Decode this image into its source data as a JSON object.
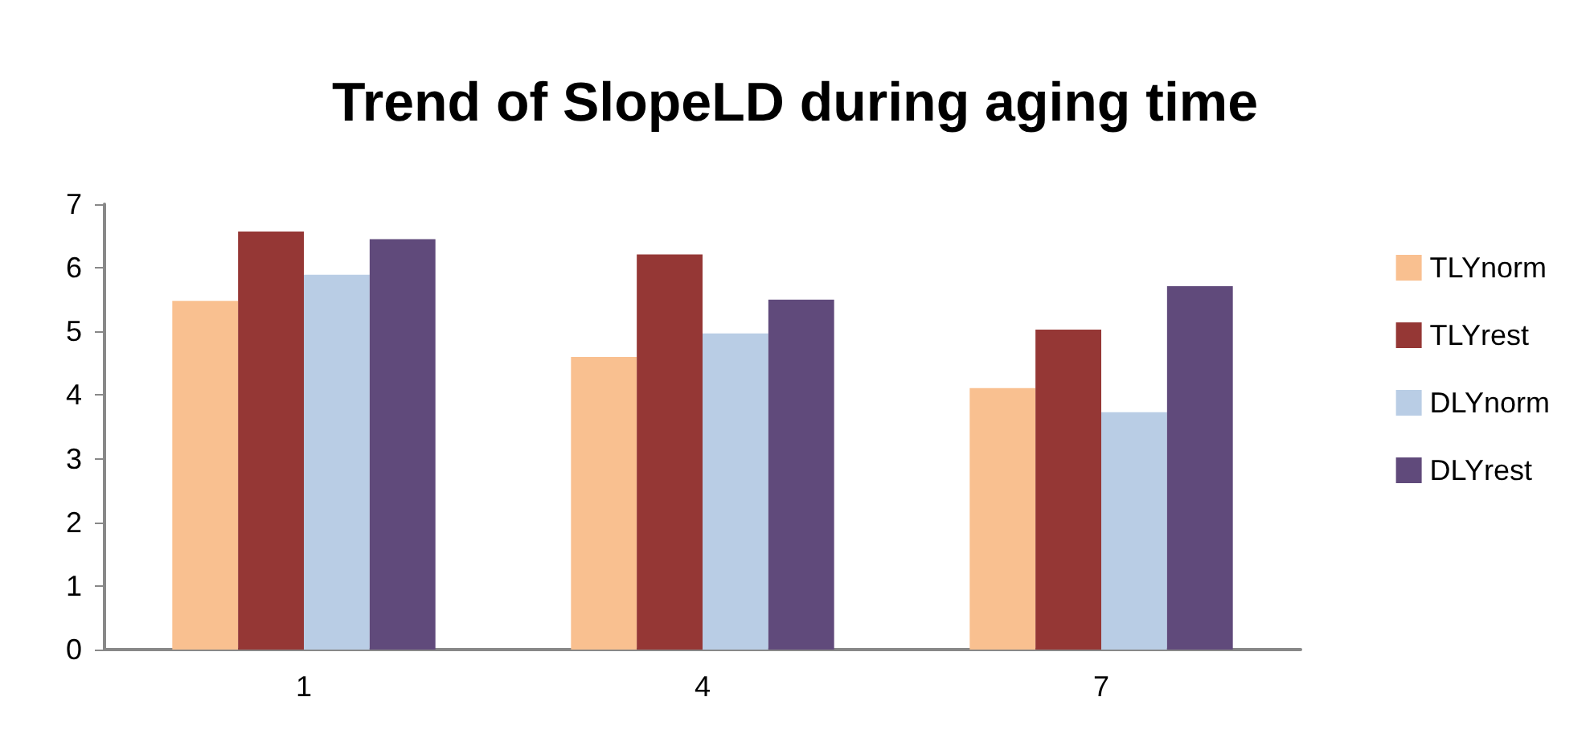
{
  "chart_data": {
    "type": "bar",
    "title": "Trend of SlopeLD during aging time",
    "categories": [
      "1",
      "4",
      "7"
    ],
    "series": [
      {
        "name": "TLYnorm",
        "color": "#f9c090",
        "values": [
          5.48,
          4.6,
          4.11
        ]
      },
      {
        "name": "TLYrest",
        "color": "#953735",
        "values": [
          6.57,
          6.21,
          5.03
        ]
      },
      {
        "name": "DLYnorm",
        "color": "#b9cde5",
        "values": [
          5.89,
          4.97,
          3.73
        ]
      },
      {
        "name": "DLYrest",
        "color": "#604a7b",
        "values": [
          6.45,
          5.5,
          5.71
        ]
      }
    ],
    "ylim": [
      0,
      7
    ],
    "yticks": [
      0,
      1,
      2,
      3,
      4,
      5,
      6,
      7
    ],
    "grid": false,
    "legend": "right"
  }
}
